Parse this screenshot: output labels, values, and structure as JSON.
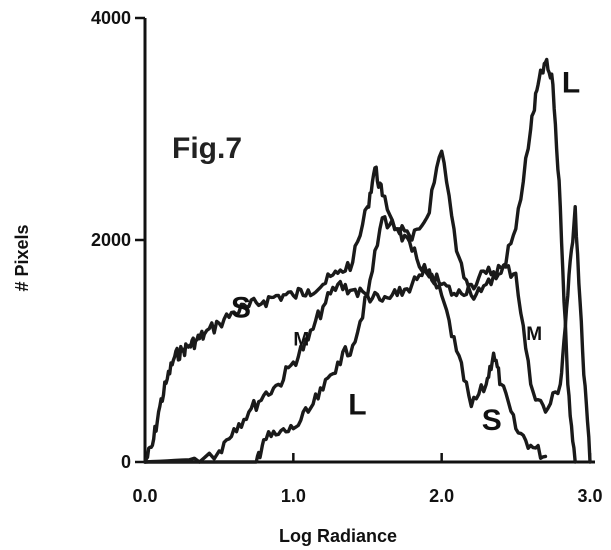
{
  "chart_data": {
    "type": "line",
    "title": "Fig.7",
    "xlabel": "Log Radiance",
    "ylabel": "# Pixels",
    "xlim": [
      0,
      3.0
    ],
    "ylim": [
      0,
      4000
    ],
    "x_ticks": [
      {
        "value": 0.0,
        "label": "0.0"
      },
      {
        "value": 1.0,
        "label": "1.0"
      },
      {
        "value": 2.0,
        "label": "2.0"
      },
      {
        "value": 3.0,
        "label": "3.0"
      }
    ],
    "y_ticks": [
      {
        "value": 0,
        "label": "0"
      },
      {
        "value": 2000,
        "label": "2000"
      },
      {
        "value": 4000,
        "label": "4000"
      }
    ],
    "grid": false,
    "series": [
      {
        "name": "S",
        "x": [
          0.0,
          0.05,
          0.1,
          0.15,
          0.2,
          0.25,
          0.3,
          0.35,
          0.4,
          0.5,
          0.6,
          0.7,
          0.8,
          0.9,
          1.0,
          1.1,
          1.2,
          1.3,
          1.4,
          1.5,
          1.55,
          1.6,
          1.7,
          1.8,
          1.9,
          2.0,
          2.1,
          2.2,
          2.3,
          2.35,
          2.4,
          2.5,
          2.6,
          2.7
        ],
        "y": [
          0,
          150,
          500,
          750,
          950,
          1000,
          1050,
          1100,
          1150,
          1250,
          1350,
          1400,
          1450,
          1500,
          1500,
          1550,
          1600,
          1700,
          1800,
          2300,
          2650,
          2400,
          2100,
          1900,
          1700,
          1500,
          1000,
          500,
          700,
          980,
          700,
          300,
          150,
          50
        ],
        "label_value": [
          0.58,
          1300
        ]
      },
      {
        "name": "M",
        "x": [
          0.0,
          0.3,
          0.5,
          0.6,
          0.7,
          0.8,
          0.9,
          1.0,
          1.1,
          1.2,
          1.3,
          1.4,
          1.5,
          1.6,
          1.7,
          1.8,
          1.9,
          2.0,
          2.1,
          2.2,
          2.3,
          2.4,
          2.5,
          2.6,
          2.7,
          2.8,
          2.85,
          2.9,
          2.95,
          3.0
        ],
        "y": [
          0,
          20,
          100,
          300,
          450,
          600,
          700,
          900,
          1100,
          1400,
          1600,
          1550,
          1500,
          1450,
          1500,
          1600,
          1700,
          1600,
          1500,
          1600,
          1700,
          1750,
          1700,
          700,
          450,
          700,
          1500,
          2300,
          1000,
          0
        ],
        "label_value": [
          1.0,
          1050
        ]
      },
      {
        "name": "L",
        "x": [
          0.0,
          0.5,
          0.75,
          0.8,
          0.9,
          1.0,
          1.1,
          1.2,
          1.3,
          1.4,
          1.5,
          1.6,
          1.7,
          1.8,
          1.9,
          2.0,
          2.1,
          2.2,
          2.3,
          2.4,
          2.5,
          2.6,
          2.65,
          2.7,
          2.75,
          2.8,
          2.85,
          2.9
        ],
        "y": [
          0,
          0,
          0,
          200,
          250,
          300,
          450,
          650,
          900,
          1050,
          1500,
          2200,
          2100,
          2000,
          2200,
          2800,
          1900,
          1500,
          1600,
          1700,
          2100,
          3000,
          3400,
          3600,
          3400,
          2300,
          700,
          0
        ],
        "label_value": [
          2.81,
          3330
        ]
      }
    ],
    "annotations": [
      {
        "text": "M",
        "x": 2.57,
        "y": 1100
      },
      {
        "text": "L",
        "x": 1.37,
        "y": 430
      },
      {
        "text": "S",
        "x": 2.27,
        "y": 290
      }
    ]
  }
}
